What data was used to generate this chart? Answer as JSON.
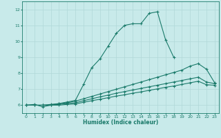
{
  "title": "",
  "xlabel": "Humidex (Indice chaleur)",
  "ylabel": "",
  "bg_color": "#c8eaea",
  "line_color": "#1a7a6a",
  "grid_color": "#b0d8d8",
  "xlim": [
    -0.5,
    23.5
  ],
  "ylim": [
    5.5,
    12.5
  ],
  "xticks": [
    0,
    1,
    2,
    3,
    4,
    5,
    6,
    7,
    8,
    9,
    10,
    11,
    12,
    13,
    14,
    15,
    16,
    17,
    18,
    19,
    20,
    21,
    22,
    23
  ],
  "yticks": [
    6,
    7,
    8,
    9,
    10,
    11,
    12
  ],
  "lines": [
    {
      "x": [
        0,
        1,
        2,
        3,
        4,
        5,
        6,
        7,
        8,
        9,
        10,
        11,
        12,
        13,
        14,
        15,
        16,
        17,
        18
      ],
      "y": [
        6.0,
        6.05,
        5.9,
        6.0,
        6.1,
        6.2,
        6.3,
        7.3,
        8.35,
        8.9,
        9.7,
        10.5,
        11.0,
        11.1,
        11.1,
        11.75,
        11.85,
        10.1,
        9.0
      ]
    },
    {
      "x": [
        0,
        1,
        2,
        3,
        4,
        5,
        6,
        7,
        8,
        9,
        10,
        11,
        12,
        13,
        14,
        15,
        16,
        17,
        18,
        19,
        20,
        21,
        22,
        23
      ],
      "y": [
        6.0,
        6.0,
        6.0,
        6.05,
        6.1,
        6.15,
        6.25,
        6.4,
        6.55,
        6.7,
        6.85,
        7.0,
        7.15,
        7.3,
        7.45,
        7.6,
        7.75,
        7.9,
        8.05,
        8.2,
        8.45,
        8.6,
        8.25,
        7.4
      ]
    },
    {
      "x": [
        0,
        1,
        2,
        3,
        4,
        5,
        6,
        7,
        8,
        9,
        10,
        11,
        12,
        13,
        14,
        15,
        16,
        17,
        18,
        19,
        20,
        21,
        22,
        23
      ],
      "y": [
        6.0,
        6.0,
        6.0,
        6.0,
        6.05,
        6.1,
        6.15,
        6.28,
        6.4,
        6.52,
        6.63,
        6.75,
        6.85,
        6.95,
        7.05,
        7.15,
        7.25,
        7.35,
        7.45,
        7.55,
        7.65,
        7.75,
        7.45,
        7.35
      ]
    },
    {
      "x": [
        0,
        1,
        2,
        3,
        4,
        5,
        6,
        7,
        8,
        9,
        10,
        11,
        12,
        13,
        14,
        15,
        16,
        17,
        18,
        19,
        20,
        21,
        22,
        23
      ],
      "y": [
        6.0,
        6.0,
        6.0,
        6.0,
        6.0,
        6.05,
        6.08,
        6.18,
        6.28,
        6.37,
        6.47,
        6.57,
        6.65,
        6.75,
        6.83,
        6.93,
        7.02,
        7.12,
        7.2,
        7.3,
        7.4,
        7.5,
        7.28,
        7.25
      ]
    }
  ]
}
